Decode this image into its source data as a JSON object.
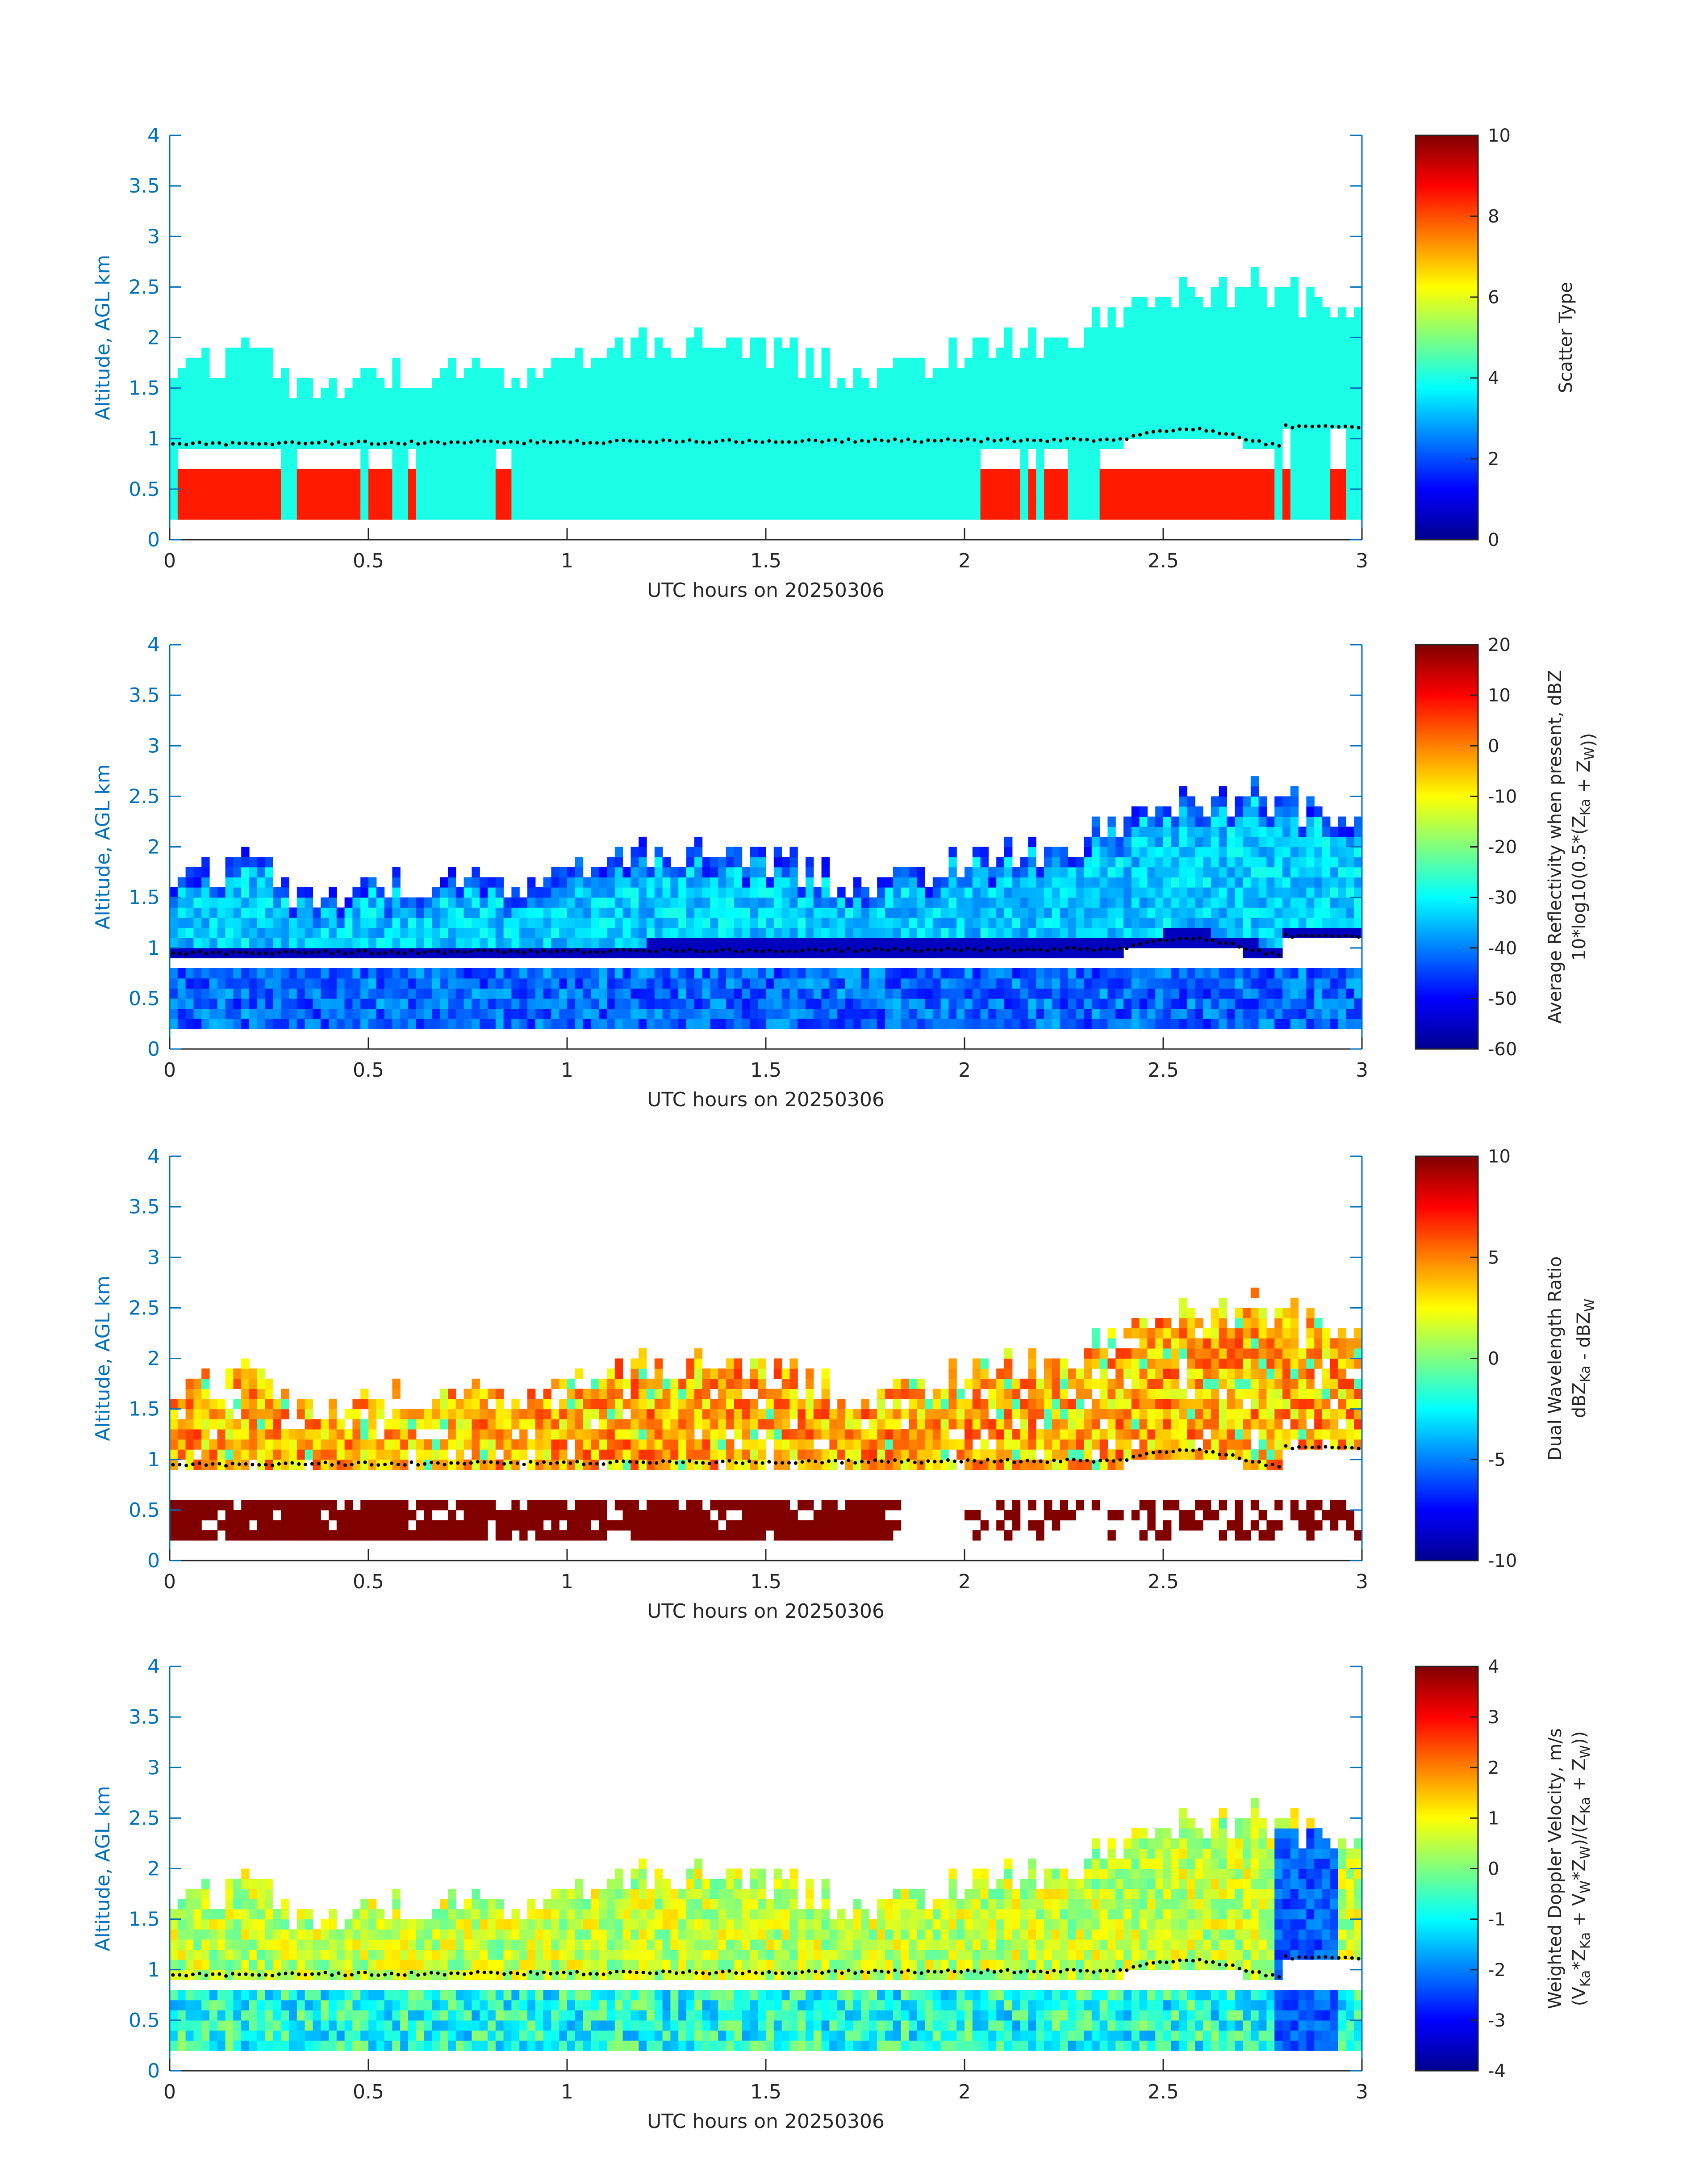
{
  "figure": {
    "shared_xlabel": "UTC hours on 20250306",
    "shared_ylabel": "Altitude, AGL km"
  },
  "chart_data": [
    {
      "type": "heatmap",
      "title": "",
      "xlabel": "UTC hours on 20250306",
      "ylabel": "Altitude, AGL km",
      "xlim": [
        0,
        3
      ],
      "ylim": [
        0,
        4
      ],
      "xticks": [
        "0",
        "0.5",
        "1",
        "1.5",
        "2",
        "2.5",
        "3"
      ],
      "yticks": [
        "0",
        "0.5",
        "1",
        "1.5",
        "2",
        "2.5",
        "3",
        "3.5",
        "4"
      ],
      "colormap": "jet",
      "clim": [
        0,
        10
      ],
      "colorbar_ticks": [
        "0",
        "2",
        "4",
        "6",
        "8",
        "10"
      ],
      "colorbar_label": "Scatter Type",
      "scatter_type_values": {
        "upper_cloud": 4,
        "lower_layer": 8.5
      },
      "cloud_base_altitude_km": 0.95,
      "cloud_bottom_km": 0.2,
      "cloud_top_km": [
        [
          0,
          1.6
        ],
        [
          0.25,
          1.9
        ],
        [
          0.3,
          1.5
        ],
        [
          0.6,
          1.6
        ],
        [
          1,
          1.7
        ],
        [
          1.25,
          1.95
        ],
        [
          1.5,
          1.9
        ],
        [
          1.75,
          1.6
        ],
        [
          2,
          1.9
        ],
        [
          2.25,
          2.0
        ],
        [
          2.5,
          2.4
        ],
        [
          2.75,
          2.5
        ],
        [
          3,
          2.25
        ]
      ],
      "lower_layer_present_intervals_h": [
        [
          0.03,
          0.2
        ],
        [
          0.21,
          0.28
        ],
        [
          0.32,
          0.48
        ],
        [
          0.5,
          0.55
        ],
        [
          0.6,
          0.61
        ],
        [
          0.83,
          0.85
        ],
        [
          2.05,
          2.13
        ],
        [
          2.16,
          2.18
        ],
        [
          2.2,
          2.25
        ],
        [
          2.35,
          2.78
        ],
        [
          2.8,
          2.82
        ],
        [
          2.93,
          2.95
        ]
      ]
    },
    {
      "type": "heatmap",
      "title": "",
      "xlabel": "UTC hours on 20250306",
      "ylabel": "Altitude, AGL km",
      "xlim": [
        0,
        3
      ],
      "ylim": [
        0,
        4
      ],
      "xticks": [
        "0",
        "0.5",
        "1",
        "1.5",
        "2",
        "2.5",
        "3"
      ],
      "yticks": [
        "0",
        "0.5",
        "1",
        "1.5",
        "2",
        "2.5",
        "3",
        "3.5",
        "4"
      ],
      "colormap": "jet",
      "clim": [
        -60,
        20
      ],
      "colorbar_ticks": [
        "-60",
        "-50",
        "-40",
        "-30",
        "-20",
        "-10",
        "0",
        "10",
        "20"
      ],
      "colorbar_label_line1": "Average Reflectivity when present, dBZ",
      "colorbar_label_line2": "10*log10(0.5*(Z",
      "colorbar_label_sub1": "Ka",
      "colorbar_label_mid": " + Z",
      "colorbar_label_sub2": "W",
      "colorbar_label_end": "))",
      "typical_values_dBZ": {
        "cloud_core": -32,
        "cloud_edge": -50,
        "base_band": -55,
        "lower_layer": -40
      }
    },
    {
      "type": "heatmap",
      "title": "",
      "xlabel": "UTC hours on 20250306",
      "ylabel": "Altitude, AGL km",
      "xlim": [
        0,
        3
      ],
      "ylim": [
        0,
        4
      ],
      "xticks": [
        "0",
        "0.5",
        "1",
        "1.5",
        "2",
        "2.5",
        "3"
      ],
      "yticks": [
        "0",
        "0.5",
        "1",
        "1.5",
        "2",
        "2.5",
        "3",
        "3.5",
        "4"
      ],
      "colormap": "jet",
      "clim": [
        -10,
        10
      ],
      "colorbar_ticks": [
        "-10",
        "-5",
        "0",
        "5",
        "10"
      ],
      "colorbar_label_line1": "Dual Wavelength Ratio",
      "colorbar_label_line2a": "dBZ",
      "colorbar_label_sub1": "Ka",
      "colorbar_label_line2b": " - dBZ",
      "colorbar_label_sub2": "W",
      "typical_values_dB": {
        "cloud": 4,
        "lower_layer": 10
      }
    },
    {
      "type": "heatmap",
      "title": "",
      "xlabel": "UTC hours on 20250306",
      "ylabel": "Altitude, AGL km",
      "xlim": [
        0,
        3
      ],
      "ylim": [
        0,
        4
      ],
      "xticks": [
        "0",
        "0.5",
        "1",
        "1.5",
        "2",
        "2.5",
        "3"
      ],
      "yticks": [
        "0",
        "0.5",
        "1",
        "1.5",
        "2",
        "2.5",
        "3",
        "3.5",
        "4"
      ],
      "colormap": "jet",
      "clim": [
        -4,
        4
      ],
      "colorbar_ticks": [
        "-4",
        "-3",
        "-2",
        "-1",
        "0",
        "1",
        "2",
        "3",
        "4"
      ],
      "colorbar_label_line1": "Weighted Doppler Velocity, m/s",
      "colorbar_label_line2": "(V",
      "typical_values_ms": {
        "cloud": 0.5,
        "lower_layer": -0.8,
        "downdraft_near_2.85h": -2.8
      }
    }
  ]
}
